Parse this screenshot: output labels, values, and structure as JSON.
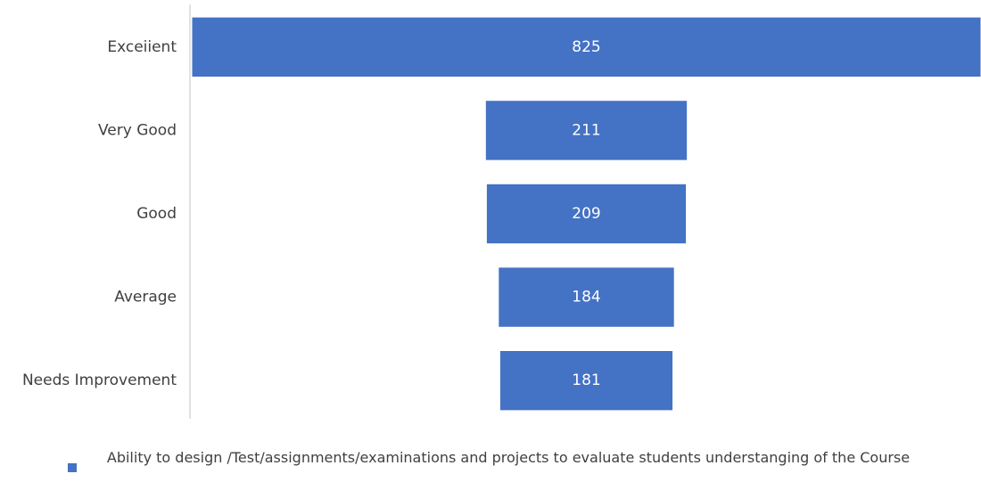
{
  "chart_data": {
    "type": "funnel",
    "categories": [
      "Exceiient",
      "Very Good",
      "Good",
      "Average",
      "Needs Improvement"
    ],
    "series": [
      {
        "name": "Ability to design /Test/assignments/examinations and projects to evaluate students understanging of the Course",
        "color": "#4472c4",
        "values": [
          825,
          211,
          209,
          184,
          181
        ]
      }
    ],
    "legend": "bottom"
  }
}
